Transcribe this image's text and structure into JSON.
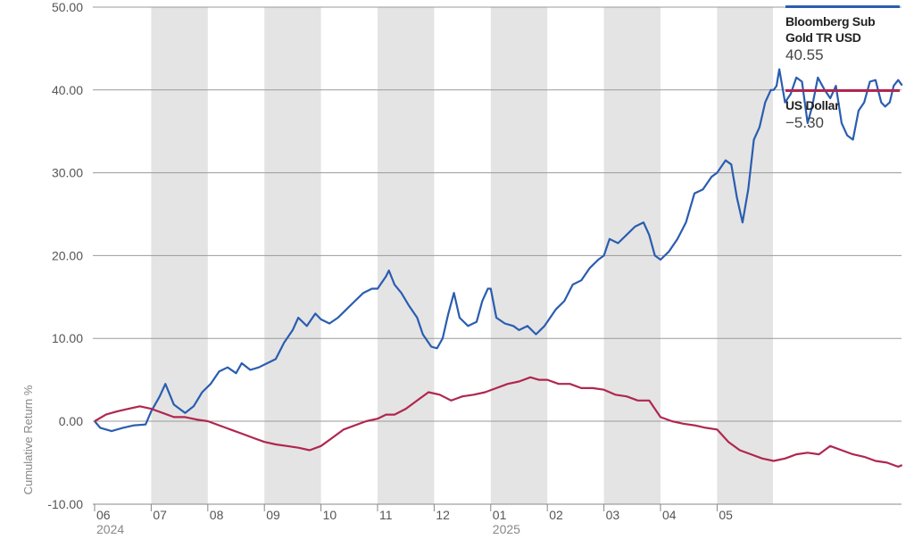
{
  "chart_data": {
    "type": "line",
    "ylabel": "Cumulative Return %",
    "ylim": [
      -10,
      50
    ],
    "y_ticks": [
      "50.00",
      "40.00",
      "30.00",
      "20.00",
      "10.00",
      "0.00",
      "-10.00"
    ],
    "x_ticks": [
      {
        "label": "06",
        "year": "2024"
      },
      {
        "label": "07",
        "year": ""
      },
      {
        "label": "08",
        "year": ""
      },
      {
        "label": "09",
        "year": ""
      },
      {
        "label": "10",
        "year": ""
      },
      {
        "label": "11",
        "year": ""
      },
      {
        "label": "12",
        "year": ""
      },
      {
        "label": "01",
        "year": "2025"
      },
      {
        "label": "02",
        "year": ""
      },
      {
        "label": "03",
        "year": ""
      },
      {
        "label": "04",
        "year": ""
      },
      {
        "label": "05",
        "year": ""
      }
    ],
    "grid": true,
    "legend_position": "right",
    "series": [
      {
        "name": "Bloomberg Sub Gold TR USD",
        "display_value": "40.55",
        "color": "#2a5db0",
        "values": [
          [
            0.0,
            0.0
          ],
          [
            0.1,
            -0.8
          ],
          [
            0.3,
            -1.2
          ],
          [
            0.5,
            -0.8
          ],
          [
            0.7,
            -0.5
          ],
          [
            0.9,
            -0.4
          ],
          [
            1.0,
            1.2
          ],
          [
            1.15,
            3.0
          ],
          [
            1.25,
            4.5
          ],
          [
            1.4,
            2.0
          ],
          [
            1.6,
            1.0
          ],
          [
            1.75,
            1.8
          ],
          [
            1.9,
            3.5
          ],
          [
            2.05,
            4.5
          ],
          [
            2.2,
            6.0
          ],
          [
            2.35,
            6.5
          ],
          [
            2.5,
            5.8
          ],
          [
            2.6,
            7.0
          ],
          [
            2.75,
            6.2
          ],
          [
            2.9,
            6.5
          ],
          [
            3.05,
            7.0
          ],
          [
            3.2,
            7.5
          ],
          [
            3.35,
            9.5
          ],
          [
            3.5,
            11.0
          ],
          [
            3.6,
            12.5
          ],
          [
            3.75,
            11.5
          ],
          [
            3.9,
            13.0
          ],
          [
            4.0,
            12.3
          ],
          [
            4.15,
            11.8
          ],
          [
            4.3,
            12.5
          ],
          [
            4.45,
            13.5
          ],
          [
            4.6,
            14.5
          ],
          [
            4.75,
            15.5
          ],
          [
            4.9,
            16.0
          ],
          [
            5.0,
            16.0
          ],
          [
            5.15,
            17.5
          ],
          [
            5.2,
            18.2
          ],
          [
            5.3,
            16.5
          ],
          [
            5.42,
            15.5
          ],
          [
            5.55,
            14.0
          ],
          [
            5.7,
            12.5
          ],
          [
            5.8,
            10.5
          ],
          [
            5.95,
            9.0
          ],
          [
            6.05,
            8.8
          ],
          [
            6.15,
            10.0
          ],
          [
            6.25,
            13.0
          ],
          [
            6.35,
            15.5
          ],
          [
            6.45,
            12.5
          ],
          [
            6.6,
            11.5
          ],
          [
            6.75,
            12.0
          ],
          [
            6.85,
            14.5
          ],
          [
            6.95,
            16.0
          ],
          [
            7.0,
            16.0
          ],
          [
            7.1,
            12.5
          ],
          [
            7.25,
            11.8
          ],
          [
            7.4,
            11.5
          ],
          [
            7.5,
            11.0
          ],
          [
            7.65,
            11.5
          ],
          [
            7.8,
            10.5
          ],
          [
            7.95,
            11.5
          ],
          [
            8.0,
            12.0
          ],
          [
            8.15,
            13.5
          ],
          [
            8.3,
            14.5
          ],
          [
            8.45,
            16.5
          ],
          [
            8.6,
            17.0
          ],
          [
            8.75,
            18.5
          ],
          [
            8.9,
            19.5
          ],
          [
            9.0,
            20.0
          ],
          [
            9.1,
            22.0
          ],
          [
            9.25,
            21.5
          ],
          [
            9.4,
            22.5
          ],
          [
            9.55,
            23.5
          ],
          [
            9.7,
            24.0
          ],
          [
            9.8,
            22.5
          ],
          [
            9.9,
            20.0
          ],
          [
            10.0,
            19.5
          ],
          [
            10.15,
            20.5
          ],
          [
            10.3,
            22.0
          ],
          [
            10.45,
            24.0
          ],
          [
            10.6,
            27.5
          ],
          [
            10.75,
            28.0
          ],
          [
            10.9,
            29.5
          ],
          [
            11.0,
            30.0
          ],
          [
            11.15,
            31.5
          ],
          [
            11.25,
            31.0
          ],
          [
            11.35,
            27.0
          ],
          [
            11.45,
            24.0
          ],
          [
            11.55,
            28.0
          ],
          [
            11.65,
            34.0
          ],
          [
            11.75,
            35.5
          ],
          [
            11.85,
            38.5
          ],
          [
            11.95,
            40.0
          ],
          [
            12.0,
            40.0
          ],
          [
            12.05,
            40.5
          ],
          [
            12.1,
            42.5
          ],
          [
            12.15,
            40.5
          ],
          [
            12.2,
            38.5
          ],
          [
            12.3,
            39.5
          ],
          [
            12.4,
            41.5
          ],
          [
            12.5,
            41.0
          ],
          [
            12.6,
            36.0
          ],
          [
            12.68,
            38.0
          ],
          [
            12.78,
            41.5
          ],
          [
            12.9,
            40.0
          ],
          [
            13.0,
            39.0
          ],
          [
            13.1,
            40.5
          ],
          [
            13.2,
            36.0
          ],
          [
            13.3,
            34.5
          ],
          [
            13.4,
            34.0
          ],
          [
            13.5,
            37.5
          ],
          [
            13.6,
            38.5
          ],
          [
            13.7,
            41.0
          ],
          [
            13.8,
            41.2
          ],
          [
            13.9,
            38.5
          ],
          [
            13.97,
            38.0
          ],
          [
            14.05,
            38.5
          ],
          [
            14.12,
            40.5
          ],
          [
            14.2,
            41.2
          ],
          [
            14.27,
            40.55
          ]
        ]
      },
      {
        "name": "US Dollar",
        "display_value": "−5.30",
        "color": "#b0264f",
        "values": [
          [
            0.0,
            0.0
          ],
          [
            0.2,
            0.8
          ],
          [
            0.4,
            1.2
          ],
          [
            0.6,
            1.5
          ],
          [
            0.8,
            1.8
          ],
          [
            1.0,
            1.5
          ],
          [
            1.2,
            1.0
          ],
          [
            1.4,
            0.5
          ],
          [
            1.6,
            0.5
          ],
          [
            1.8,
            0.2
          ],
          [
            2.0,
            0.0
          ],
          [
            2.2,
            -0.5
          ],
          [
            2.4,
            -1.0
          ],
          [
            2.6,
            -1.5
          ],
          [
            2.8,
            -2.0
          ],
          [
            3.0,
            -2.5
          ],
          [
            3.2,
            -2.8
          ],
          [
            3.4,
            -3.0
          ],
          [
            3.6,
            -3.2
          ],
          [
            3.8,
            -3.5
          ],
          [
            4.0,
            -3.0
          ],
          [
            4.2,
            -2.0
          ],
          [
            4.4,
            -1.0
          ],
          [
            4.6,
            -0.5
          ],
          [
            4.8,
            0.0
          ],
          [
            5.0,
            0.3
          ],
          [
            5.15,
            0.8
          ],
          [
            5.3,
            0.8
          ],
          [
            5.5,
            1.5
          ],
          [
            5.7,
            2.5
          ],
          [
            5.9,
            3.5
          ],
          [
            6.1,
            3.2
          ],
          [
            6.3,
            2.5
          ],
          [
            6.5,
            3.0
          ],
          [
            6.7,
            3.2
          ],
          [
            6.9,
            3.5
          ],
          [
            7.1,
            4.0
          ],
          [
            7.3,
            4.5
          ],
          [
            7.5,
            4.8
          ],
          [
            7.7,
            5.3
          ],
          [
            7.85,
            5.0
          ],
          [
            8.0,
            5.0
          ],
          [
            8.2,
            4.5
          ],
          [
            8.4,
            4.5
          ],
          [
            8.6,
            4.0
          ],
          [
            8.8,
            4.0
          ],
          [
            9.0,
            3.8
          ],
          [
            9.2,
            3.2
          ],
          [
            9.4,
            3.0
          ],
          [
            9.6,
            2.5
          ],
          [
            9.8,
            2.5
          ],
          [
            10.0,
            0.5
          ],
          [
            10.2,
            0.0
          ],
          [
            10.4,
            -0.3
          ],
          [
            10.6,
            -0.5
          ],
          [
            10.8,
            -0.8
          ],
          [
            11.0,
            -1.0
          ],
          [
            11.2,
            -2.5
          ],
          [
            11.4,
            -3.5
          ],
          [
            11.6,
            -4.0
          ],
          [
            11.8,
            -4.5
          ],
          [
            12.0,
            -4.8
          ],
          [
            12.2,
            -4.5
          ],
          [
            12.4,
            -4.0
          ],
          [
            12.6,
            -3.8
          ],
          [
            12.8,
            -4.0
          ],
          [
            13.0,
            -3.0
          ],
          [
            13.2,
            -3.5
          ],
          [
            13.4,
            -4.0
          ],
          [
            13.6,
            -4.3
          ],
          [
            13.8,
            -4.8
          ],
          [
            14.0,
            -5.0
          ],
          [
            14.2,
            -5.5
          ],
          [
            14.27,
            -5.3
          ]
        ]
      }
    ]
  }
}
